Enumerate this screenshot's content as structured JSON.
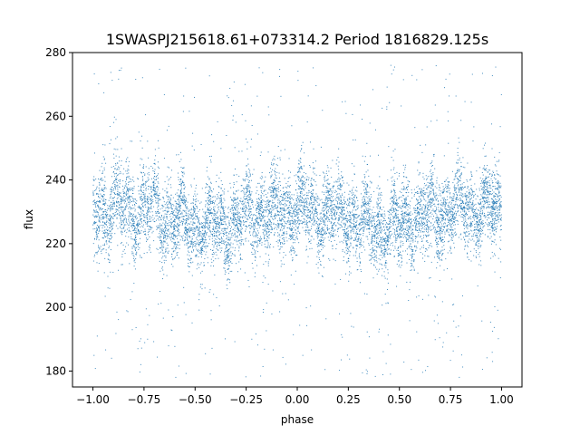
{
  "chart_data": {
    "type": "scatter",
    "title": "1SWASPJ215618.61+073314.2 Period 1816829.125s",
    "xlabel": "phase",
    "ylabel": "flux",
    "xlim": [
      -1.1,
      1.1
    ],
    "ylim": [
      175,
      280
    ],
    "grid": false,
    "legend": "none",
    "x_ticks": [
      -1.0,
      -0.75,
      -0.5,
      -0.25,
      0.0,
      0.25,
      0.5,
      0.75,
      1.0
    ],
    "x_tick_labels": [
      "−1.00",
      "−0.75",
      "−0.50",
      "−0.25",
      "0.00",
      "0.25",
      "0.50",
      "0.75",
      "1.00"
    ],
    "y_ticks": [
      180,
      200,
      220,
      240,
      260,
      280
    ],
    "y_tick_labels": [
      "180",
      "200",
      "220",
      "240",
      "260",
      "280"
    ],
    "marker_color": "#1f77b4",
    "series": [
      {
        "x_range": [
          -1.0,
          1.0
        ],
        "phase_folded": true,
        "approx_points": 9000,
        "median_flux_profile": [
          {
            "phase": 0.0,
            "flux": 231
          },
          {
            "phase": 0.1,
            "flux": 230
          },
          {
            "phase": 0.2,
            "flux": 229
          },
          {
            "phase": 0.25,
            "flux": 228
          },
          {
            "phase": 0.3,
            "flux": 226
          },
          {
            "phase": 0.4,
            "flux": 225
          },
          {
            "phase": 0.5,
            "flux": 226
          },
          {
            "phase": 0.6,
            "flux": 228
          },
          {
            "phase": 0.7,
            "flux": 230
          },
          {
            "phase": 0.8,
            "flux": 231
          },
          {
            "phase": 0.9,
            "flux": 231
          },
          {
            "phase": 1.0,
            "flux": 231
          }
        ],
        "core_scatter": 8,
        "outlier_range": [
          178,
          276
        ]
      }
    ]
  }
}
